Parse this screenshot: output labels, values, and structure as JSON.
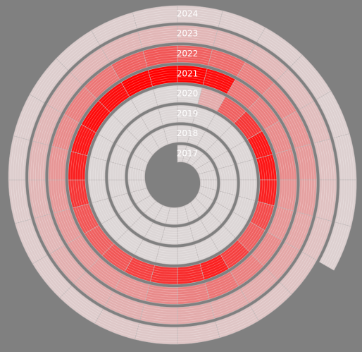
{
  "chart_data": {
    "type": "spiral-heatmap",
    "vlim": [
      0,
      100
    ],
    "color_low": "#dcd6d6",
    "color_high": "#ff0000",
    "series": [
      {
        "name": "2017",
        "values": [
          0,
          0,
          0,
          0,
          0,
          0,
          0,
          0,
          0,
          0,
          0,
          0,
          0,
          0,
          0,
          0,
          0,
          0,
          0,
          0,
          0,
          0,
          0,
          0
        ]
      },
      {
        "name": "2018",
        "values": [
          0,
          0,
          0,
          0,
          0,
          0,
          0,
          0,
          0,
          0,
          0,
          0,
          0,
          0,
          0,
          0,
          0,
          0,
          0,
          0,
          0,
          0,
          0,
          0
        ]
      },
      {
        "name": "2019",
        "values": [
          0,
          0,
          0,
          0,
          0,
          0,
          0,
          0,
          0,
          0,
          0,
          0,
          0,
          0,
          0,
          0,
          0,
          0,
          0,
          0,
          0,
          0,
          0,
          0
        ]
      },
      {
        "name": "2020",
        "values": [
          0,
          20,
          55,
          75,
          90,
          90,
          85,
          65,
          55,
          70,
          85,
          80,
          75,
          70,
          60,
          55,
          60,
          75,
          85,
          90,
          95,
          95,
          100,
          100
        ]
      },
      {
        "name": "2021",
        "values": [
          100,
          95,
          45,
          40,
          35,
          35,
          30,
          30,
          35,
          40,
          45,
          40,
          35,
          30,
          30,
          28,
          28,
          28,
          30,
          35,
          40,
          45,
          55,
          60
        ]
      },
      {
        "name": "2022",
        "values": [
          55,
          50,
          40,
          35,
          30,
          28,
          25,
          22,
          22,
          20,
          20,
          20,
          18,
          18,
          18,
          18,
          15,
          15,
          15,
          15,
          15,
          15,
          15,
          15
        ]
      },
      {
        "name": "2023",
        "values": [
          15,
          15,
          14,
          12,
          12,
          10,
          10,
          10,
          9,
          8,
          8,
          8,
          7,
          7,
          5,
          5,
          5,
          5,
          4,
          4,
          4,
          4,
          4,
          4
        ]
      },
      {
        "name": "2024",
        "values": [
          4,
          4,
          4,
          4,
          3,
          3,
          3,
          3
        ]
      }
    ]
  }
}
